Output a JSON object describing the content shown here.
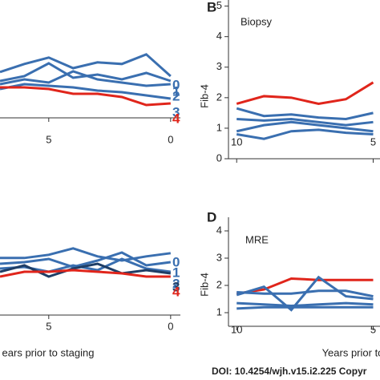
{
  "chart_data": [
    {
      "type": "line",
      "x": [
        7,
        6,
        5,
        4,
        3,
        2,
        1,
        0
      ],
      "xlim": [
        7,
        -0.4
      ],
      "xticks": [
        5,
        0
      ],
      "ylim": [
        0,
        3.6
      ],
      "series": [
        {
          "name": "0",
          "color": "#3a6fb0",
          "values": [
            1.43,
            1.68,
            1.88,
            1.55,
            1.73,
            1.68,
            1.98,
            1.3
          ]
        },
        {
          "name": "1",
          "color": "#3a6fb0",
          "values": [
            1.15,
            1.3,
            1.7,
            1.25,
            1.35,
            1.2,
            1.4,
            1.15
          ]
        },
        {
          "name": "2",
          "color": "#3a6fb0",
          "values": [
            1.05,
            1.2,
            1.1,
            1.45,
            1.2,
            1.1,
            1.0,
            1.05
          ]
        },
        {
          "name": "3",
          "color": "#3a6fb0",
          "values": [
            0.9,
            1.05,
            1.0,
            0.95,
            0.85,
            0.8,
            0.7,
            0.6
          ]
        },
        {
          "name": "4",
          "color": "#e0251b",
          "values": [
            0.95,
            0.95,
            0.9,
            0.75,
            0.75,
            0.65,
            0.4,
            0.45
          ]
        }
      ]
    },
    {
      "type": "line",
      "panel_label": "B",
      "title": "Biopsy",
      "y_label": "Fib-4",
      "x": [
        10,
        9,
        8,
        7,
        6,
        5
      ],
      "xlim": [
        10.3,
        4.75
      ],
      "xticks": [
        10,
        5
      ],
      "ylim": [
        0,
        5.2
      ],
      "yticks": [
        0,
        1,
        2,
        3,
        4,
        5
      ],
      "series": [
        {
          "color": "#e0251b",
          "values": [
            1.8,
            2.05,
            2.0,
            1.8,
            1.95,
            2.5
          ]
        },
        {
          "color": "#3a6fb0",
          "values": [
            1.65,
            1.4,
            1.45,
            1.35,
            1.3,
            1.5
          ]
        },
        {
          "color": "#3a6fb0",
          "values": [
            1.3,
            1.25,
            1.3,
            1.2,
            1.1,
            1.2
          ]
        },
        {
          "color": "#3a6fb0",
          "values": [
            0.9,
            1.1,
            1.2,
            1.1,
            1.0,
            0.9
          ]
        },
        {
          "color": "#3a6fb0",
          "values": [
            0.8,
            0.65,
            0.9,
            0.95,
            0.85,
            0.8
          ]
        }
      ]
    },
    {
      "type": "line",
      "x_label": "ears prior to staging",
      "x": [
        7,
        6,
        5,
        4,
        3,
        2,
        1,
        0
      ],
      "xlim": [
        7,
        -0.4
      ],
      "xticks": [
        5,
        0
      ],
      "ylim": [
        0,
        3
      ],
      "series": [
        {
          "name": "0",
          "color": "#3a6fb0",
          "values": [
            1.78,
            1.78,
            1.88,
            2.08,
            1.83,
            1.7,
            1.83,
            1.93
          ]
        },
        {
          "name": "1",
          "color": "#3a6fb0",
          "values": [
            1.6,
            1.65,
            1.75,
            1.5,
            1.7,
            1.95,
            1.55,
            1.65
          ]
        },
        {
          "name": "2",
          "color": "#3a6fb0",
          "values": [
            1.45,
            1.5,
            1.35,
            1.55,
            1.4,
            1.75,
            1.45,
            1.35
          ]
        },
        {
          "name": "3",
          "color": "#1f3e66",
          "values": [
            1.35,
            1.55,
            1.2,
            1.45,
            1.6,
            1.3,
            1.4,
            1.3
          ]
        },
        {
          "name": "4",
          "color": "#e0251b",
          "values": [
            1.2,
            1.35,
            1.35,
            1.4,
            1.35,
            1.3,
            1.2,
            1.2
          ]
        }
      ]
    },
    {
      "type": "line",
      "panel_label": "D",
      "title": "MRE",
      "y_label": "Fib-4",
      "x_label": "Years prior to",
      "x": [
        10,
        9,
        8,
        7,
        6,
        5
      ],
      "xlim": [
        10.3,
        4.75
      ],
      "xticks": [
        10,
        5
      ],
      "ylim": [
        0.5,
        4.5
      ],
      "yticks": [
        1,
        2,
        3,
        4
      ],
      "series": [
        {
          "color": "#e0251b",
          "values": [
            1.7,
            1.85,
            2.25,
            2.2,
            2.2,
            2.2
          ]
        },
        {
          "color": "#3a6fb0",
          "values": [
            1.65,
            1.95,
            1.1,
            2.3,
            1.6,
            1.5
          ]
        },
        {
          "color": "#3a6fb0",
          "values": [
            1.75,
            1.7,
            1.7,
            1.8,
            1.8,
            1.6
          ]
        },
        {
          "color": "#3a6fb0",
          "values": [
            1.35,
            1.3,
            1.25,
            1.3,
            1.35,
            1.3
          ]
        },
        {
          "color": "#3a6fb0",
          "values": [
            1.15,
            1.2,
            1.2,
            1.2,
            1.2,
            1.2
          ]
        }
      ]
    }
  ],
  "footer": "DOI: 10.4254/wjh.v15.i2.225 Copyr"
}
